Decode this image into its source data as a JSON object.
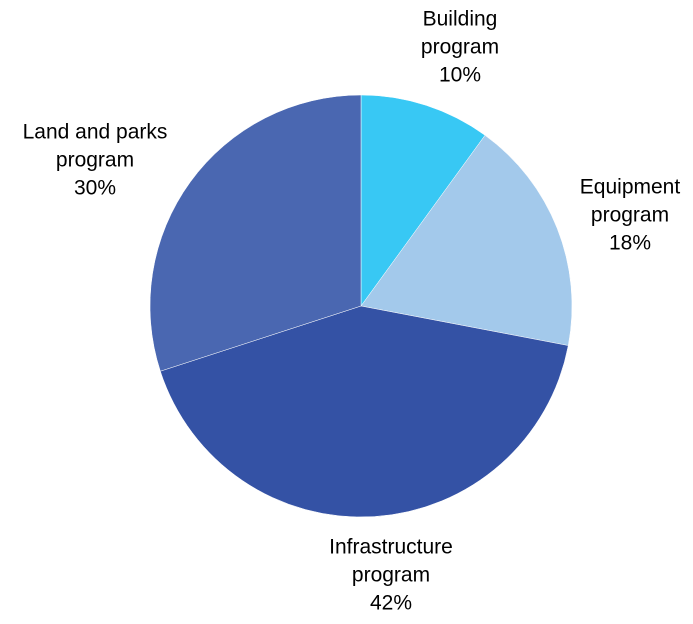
{
  "chart_data": {
    "type": "pie",
    "start_angle_deg": 0,
    "direction": "clockwise",
    "slices": [
      {
        "name": "Building program",
        "label_lines": [
          "Building",
          "program",
          "10%"
        ],
        "value": 10,
        "color": "#38c8f4"
      },
      {
        "name": "Equipment program",
        "label_lines": [
          "Equipment",
          "program",
          "18%"
        ],
        "value": 18,
        "color": "#a3c9eb"
      },
      {
        "name": "Infrastructure program",
        "label_lines": [
          "Infrastructure",
          "program",
          "42%"
        ],
        "value": 42,
        "color": "#3452a5"
      },
      {
        "name": "Land and parks program",
        "label_lines": [
          "Land and parks",
          "program",
          "30%"
        ],
        "value": 30,
        "color": "#4a67b1"
      }
    ],
    "legend": "none"
  }
}
